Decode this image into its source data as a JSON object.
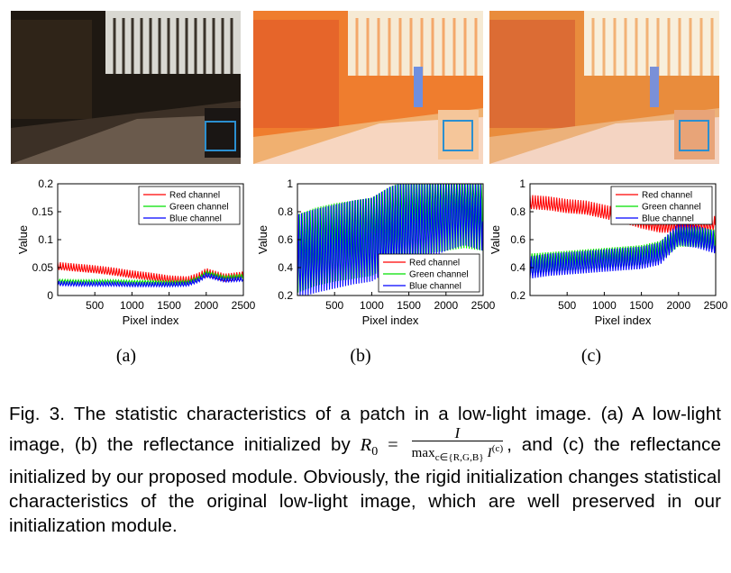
{
  "figure": {
    "subfigure_labels": [
      "(a)",
      "(b)",
      "(c)"
    ],
    "photo_tint": [
      "#2a2118",
      "#f07a2a",
      "#e98a3a"
    ]
  },
  "chart_data": [
    {
      "type": "line",
      "xlabel": "Pixel index",
      "ylabel": "Value",
      "xlim": [
        0,
        2500
      ],
      "ylim": [
        0,
        0.2
      ],
      "xticks": [
        "500",
        "1000",
        "1500",
        "2000",
        "2500"
      ],
      "xtick_values": [
        500,
        1000,
        1500,
        2000,
        2500
      ],
      "yticks": [
        "0",
        "0.05",
        "0.1",
        "0.15",
        "0.2"
      ],
      "ytick_values": [
        0,
        0.05,
        0.1,
        0.15,
        0.2
      ],
      "legend_position": "top-right",
      "series": [
        {
          "name": "Red channel",
          "color": "#ff0000",
          "x": [
            0,
            250,
            500,
            750,
            1000,
            1250,
            1500,
            1750,
            1900,
            2000,
            2250,
            2500
          ],
          "values": [
            0.053,
            0.05,
            0.047,
            0.043,
            0.038,
            0.034,
            0.029,
            0.027,
            0.034,
            0.042,
            0.032,
            0.036
          ],
          "amp": 0.007
        },
        {
          "name": "Green channel",
          "color": "#00e000",
          "x": [
            0,
            250,
            500,
            750,
            1000,
            1250,
            1500,
            1750,
            1900,
            2000,
            2250,
            2500
          ],
          "values": [
            0.025,
            0.024,
            0.024,
            0.024,
            0.023,
            0.023,
            0.022,
            0.023,
            0.03,
            0.04,
            0.031,
            0.034
          ],
          "amp": 0.004
        },
        {
          "name": "Blue channel",
          "color": "#0000ff",
          "x": [
            0,
            250,
            500,
            750,
            1000,
            1250,
            1500,
            1750,
            1900,
            2000,
            2250,
            2500
          ],
          "values": [
            0.022,
            0.021,
            0.021,
            0.021,
            0.02,
            0.02,
            0.02,
            0.021,
            0.028,
            0.037,
            0.028,
            0.03
          ],
          "amp": 0.004
        }
      ]
    },
    {
      "type": "line",
      "xlabel": "Pixel index",
      "ylabel": "Value",
      "xlim": [
        0,
        2500
      ],
      "ylim": [
        0.2,
        1
      ],
      "xticks": [
        "500",
        "1000",
        "1500",
        "2000",
        "2500"
      ],
      "xtick_values": [
        500,
        1000,
        1500,
        2000,
        2500
      ],
      "yticks": [
        "0.2",
        "0.4",
        "0.6",
        "0.8",
        "1"
      ],
      "ytick_values": [
        0.2,
        0.4,
        0.6,
        0.8,
        1
      ],
      "legend_position": "bottom-right",
      "series": [
        {
          "name": "Red channel",
          "color": "#ff0000",
          "x": [
            0,
            250,
            500,
            750,
            1000,
            1250,
            1500,
            1750,
            2000,
            2250,
            2500
          ],
          "values": [
            1,
            1,
            1,
            1,
            1,
            1,
            1,
            1,
            1,
            1,
            1
          ],
          "amp": 0
        },
        {
          "name": "Green channel",
          "color": "#00e000",
          "x": [
            0,
            250,
            500,
            750,
            1000,
            1250,
            1500,
            1750,
            2000,
            2250,
            2500
          ],
          "values": [
            0.5,
            0.55,
            0.58,
            0.6,
            0.62,
            0.7,
            0.75,
            0.78,
            0.8,
            0.82,
            0.8
          ],
          "amp": 0.28
        },
        {
          "name": "Blue channel",
          "color": "#0000ff",
          "x": [
            0,
            250,
            500,
            750,
            1000,
            1250,
            1500,
            1750,
            2000,
            2250,
            2500
          ],
          "values": [
            0.48,
            0.52,
            0.55,
            0.58,
            0.6,
            0.68,
            0.72,
            0.76,
            0.82,
            0.86,
            0.82
          ],
          "amp": 0.3
        }
      ]
    },
    {
      "type": "line",
      "xlabel": "Pixel index",
      "ylabel": "Value",
      "xlim": [
        0,
        2500
      ],
      "ylim": [
        0.2,
        1
      ],
      "xticks": [
        "500",
        "1000",
        "1500",
        "2000",
        "2500"
      ],
      "xtick_values": [
        500,
        1000,
        1500,
        2000,
        2500
      ],
      "yticks": [
        "0.2",
        "0.4",
        "0.6",
        "0.8",
        "1"
      ],
      "ytick_values": [
        0.2,
        0.4,
        0.6,
        0.8,
        1
      ],
      "legend_position": "top-right",
      "series": [
        {
          "name": "Red channel",
          "color": "#ff0000",
          "x": [
            0,
            250,
            500,
            750,
            1000,
            1250,
            1500,
            1750,
            2000,
            2250,
            2500
          ],
          "values": [
            0.87,
            0.86,
            0.84,
            0.83,
            0.8,
            0.77,
            0.73,
            0.7,
            0.7,
            0.7,
            0.72
          ],
          "amp": 0.05
        },
        {
          "name": "Green channel",
          "color": "#00e000",
          "x": [
            0,
            250,
            500,
            750,
            1000,
            1250,
            1500,
            1750,
            2000,
            2250,
            2500
          ],
          "values": [
            0.43,
            0.44,
            0.45,
            0.46,
            0.47,
            0.48,
            0.49,
            0.52,
            0.62,
            0.62,
            0.6
          ],
          "amp": 0.07
        },
        {
          "name": "Blue channel",
          "color": "#0000ff",
          "x": [
            0,
            250,
            500,
            750,
            1000,
            1250,
            1500,
            1750,
            2000,
            2250,
            2500
          ],
          "values": [
            0.4,
            0.42,
            0.43,
            0.44,
            0.45,
            0.46,
            0.47,
            0.5,
            0.64,
            0.62,
            0.58
          ],
          "amp": 0.08
        }
      ]
    }
  ],
  "caption": {
    "part1": "Fig. 3. The statistic characteristics of a patch in a low-light image. (a) A low-light image, (b) the reflectance initialized by",
    "r0": "R",
    "r0_sub": "0",
    "equals": "=",
    "frac_num": "I",
    "frac_den_op": "max",
    "frac_den_sub": "c∈{R,G,B}",
    "frac_den_var": "I",
    "frac_den_sup": "(c)",
    "part2": ", and (c) the reflectance initialized by our proposed module. Obviously, the rigid initialization changes statistical characteristics of the original low-light image, which are well preserved in our initialization module."
  }
}
